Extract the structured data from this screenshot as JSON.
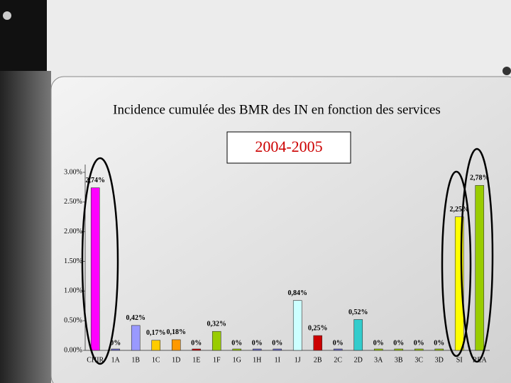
{
  "chart_data": {
    "type": "bar",
    "title": "Incidence cumulée des BMR des IN en fonction des services",
    "subtitle": "2004-2005",
    "categories": [
      "CHIR",
      "1A",
      "1B",
      "1C",
      "1D",
      "1E",
      "1F",
      "1G",
      "1H",
      "1I",
      "1J",
      "2B",
      "2C",
      "2D",
      "3A",
      "3B",
      "3C",
      "3D",
      "SI",
      "REA"
    ],
    "values": [
      2.74,
      0,
      0.42,
      0.17,
      0.18,
      0,
      0.32,
      0,
      0,
      0,
      0.84,
      0.25,
      0,
      0.52,
      0,
      0,
      0,
      0,
      2.25,
      2.78
    ],
    "value_labels": [
      "2,74%",
      "0%",
      "0,42%",
      "0,17%",
      "0,18%",
      "0%",
      "0,32%",
      "0%",
      "0%",
      "0%",
      "0,84%",
      "0,25%",
      "0%",
      "0,52%",
      "0%",
      "0%",
      "0%",
      "0%",
      "2,25%",
      "2,78%"
    ],
    "colors": [
      "#ff00ff",
      "#6666cc",
      "#9999ff",
      "#ffcc00",
      "#ff9900",
      "#cc0000",
      "#99cc00",
      "#99cc00",
      "#6666cc",
      "#6666cc",
      "#ccffff",
      "#cc0000",
      "#6666cc",
      "#33cccc",
      "#99cc00",
      "#99cc00",
      "#99cc00",
      "#99cc00",
      "#ffff00",
      "#99cc00"
    ],
    "ylim": [
      0,
      3
    ],
    "yticks": [
      {
        "value": 0,
        "label": "0.00%"
      },
      {
        "value": 0.5,
        "label": "0.50%"
      },
      {
        "value": 1,
        "label": "1.00%"
      },
      {
        "value": 1.5,
        "label": "1.50%"
      },
      {
        "value": 2,
        "label": "2.00%"
      },
      {
        "value": 2.5,
        "label": "2.50%"
      },
      {
        "value": 3,
        "label": "3.00%"
      }
    ]
  }
}
